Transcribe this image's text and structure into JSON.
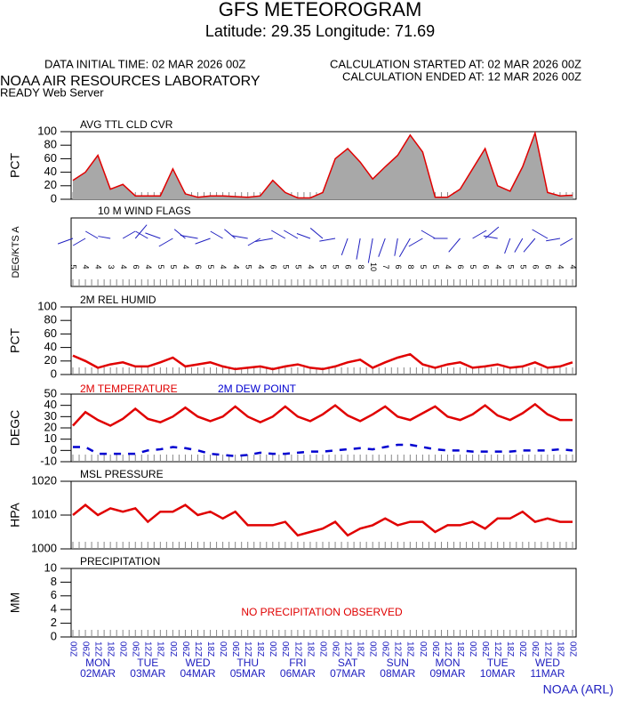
{
  "header": {
    "title": "GFS METEOROGRAM",
    "subtitle": "Latitude: 29.35 Longitude:  71.69",
    "init": "DATA INITIAL TIME: 02 MAR 2026 00Z",
    "started": "CALCULATION STARTED AT: 02 MAR 2026 00Z",
    "ended": "CALCULATION ENDED AT: 12 MAR 2026 00Z",
    "org": "NOAA AIR RESOURCES LABORATORY",
    "server": "READY Web Server",
    "footer": "NOAA (ARL)"
  },
  "chart_data": [
    {
      "type": "area",
      "title": "AVG TTL CLD CVR",
      "ylabel": "PCT",
      "ylim": [
        0,
        100
      ],
      "yticks": [
        0,
        20,
        40,
        60,
        80,
        100
      ],
      "series": [
        {
          "color": "#e00000",
          "values": [
            28,
            40,
            65,
            15,
            22,
            5,
            5,
            5,
            45,
            8,
            3,
            5,
            5,
            4,
            3,
            5,
            28,
            10,
            2,
            2,
            10,
            60,
            75,
            55,
            30,
            48,
            65,
            95,
            70,
            3,
            3,
            15,
            45,
            75,
            20,
            12,
            48,
            98,
            10,
            5,
            6
          ]
        }
      ]
    },
    {
      "type": "wind",
      "title": "10 M  WIND FLAGS",
      "ylabel": "DEG/KTS  A",
      "speeds": [
        5,
        4,
        4,
        3,
        4,
        6,
        4,
        5,
        5,
        4,
        6,
        5,
        4,
        4,
        5,
        4,
        6,
        5,
        5,
        4,
        5,
        5,
        6,
        8,
        10,
        7,
        6,
        8,
        5,
        5,
        4,
        6,
        5,
        6,
        4,
        5,
        5,
        6,
        6,
        4,
        4
      ],
      "directions": [
        250,
        240,
        300,
        280,
        60,
        40,
        300,
        290,
        240,
        310,
        280,
        250,
        300,
        310,
        280,
        240,
        260,
        300,
        300,
        290,
        310,
        260,
        200,
        190,
        190,
        200,
        190,
        210,
        240,
        300,
        270,
        220,
        60,
        50,
        280,
        200,
        210,
        220,
        300,
        260,
        240
      ]
    },
    {
      "type": "line",
      "title": "2M REL HUMID",
      "ylabel": "PCT",
      "ylim": [
        0,
        100
      ],
      "yticks": [
        0,
        20,
        40,
        60,
        80,
        100
      ],
      "series": [
        {
          "color": "#e00000",
          "values": [
            28,
            20,
            10,
            15,
            18,
            12,
            12,
            18,
            25,
            12,
            15,
            18,
            12,
            8,
            10,
            12,
            8,
            12,
            15,
            10,
            8,
            12,
            18,
            22,
            10,
            18,
            25,
            30,
            15,
            10,
            15,
            18,
            10,
            12,
            15,
            10,
            12,
            18,
            10,
            12,
            18
          ]
        }
      ]
    },
    {
      "type": "line",
      "ylabel": "DEGC",
      "ylim": [
        -10,
        50
      ],
      "yticks": [
        -10,
        0,
        10,
        20,
        30,
        40,
        50
      ],
      "series": [
        {
          "name": "2M TEMPERATURE",
          "color": "#e00000",
          "values": [
            22,
            34,
            27,
            22,
            28,
            37,
            28,
            25,
            30,
            38,
            30,
            26,
            30,
            39,
            30,
            25,
            30,
            39,
            30,
            26,
            32,
            40,
            31,
            26,
            32,
            39,
            30,
            27,
            33,
            39,
            30,
            27,
            32,
            40,
            31,
            27,
            33,
            41,
            32,
            27,
            27
          ]
        },
        {
          "name": "2M  DEW POINT",
          "color": "#0000d0",
          "dashed": true,
          "values": [
            3,
            3,
            -3,
            -3,
            -3,
            -3,
            0,
            1,
            3,
            2,
            0,
            -3,
            -4,
            -5,
            -4,
            -2,
            -3,
            -3,
            -2,
            -1,
            -1,
            0,
            1,
            2,
            1,
            3,
            5,
            5,
            3,
            1,
            0,
            0,
            -1,
            -1,
            -1,
            -1,
            0,
            0,
            0,
            1,
            0
          ]
        }
      ]
    },
    {
      "type": "line",
      "title": "MSL PRESSURE",
      "ylabel": "HPA",
      "ylim": [
        1000,
        1020
      ],
      "yticks": [
        1000,
        1010,
        1020
      ],
      "series": [
        {
          "color": "#e00000",
          "values": [
            1010,
            1013,
            1010,
            1012,
            1011,
            1012,
            1008,
            1011,
            1011,
            1013,
            1010,
            1011,
            1009,
            1011,
            1007,
            1007,
            1007,
            1008,
            1004,
            1005,
            1006,
            1008,
            1004,
            1006,
            1007,
            1009,
            1007,
            1008,
            1008,
            1005,
            1007,
            1007,
            1008,
            1006,
            1009,
            1009,
            1011,
            1008,
            1009,
            1008,
            1008
          ]
        }
      ]
    },
    {
      "type": "empty",
      "title": "PRECIPITATION",
      "ylabel": "MM",
      "ylim": [
        0,
        10
      ],
      "yticks": [
        0,
        2,
        4,
        6,
        8,
        10
      ],
      "note": "NO PRECIPITATION OBSERVED",
      "categories": [
        "00Z",
        "06Z",
        "12Z",
        "18Z",
        "00Z",
        "06Z",
        "12Z",
        "18Z",
        "00Z",
        "06Z",
        "12Z",
        "18Z",
        "00Z",
        "06Z",
        "12Z",
        "18Z",
        "00Z",
        "06Z",
        "12Z",
        "18Z",
        "00Z",
        "06Z",
        "12Z",
        "18Z",
        "00Z",
        "06Z",
        "12Z",
        "18Z",
        "00Z",
        "06Z",
        "12Z",
        "18Z",
        "00Z",
        "06Z",
        "12Z",
        "18Z",
        "00Z",
        "06Z",
        "12Z",
        "18Z",
        "00Z"
      ],
      "days": [
        [
          "MON",
          "02MAR"
        ],
        [
          "TUE",
          "03MAR"
        ],
        [
          "WED",
          "04MAR"
        ],
        [
          "THU",
          "05MAR"
        ],
        [
          "FRI",
          "06MAR"
        ],
        [
          "SAT",
          "07MAR"
        ],
        [
          "SUN",
          "08MAR"
        ],
        [
          "MON",
          "09MAR"
        ],
        [
          "TUE",
          "10MAR"
        ],
        [
          "WED",
          "11MAR"
        ]
      ]
    }
  ]
}
